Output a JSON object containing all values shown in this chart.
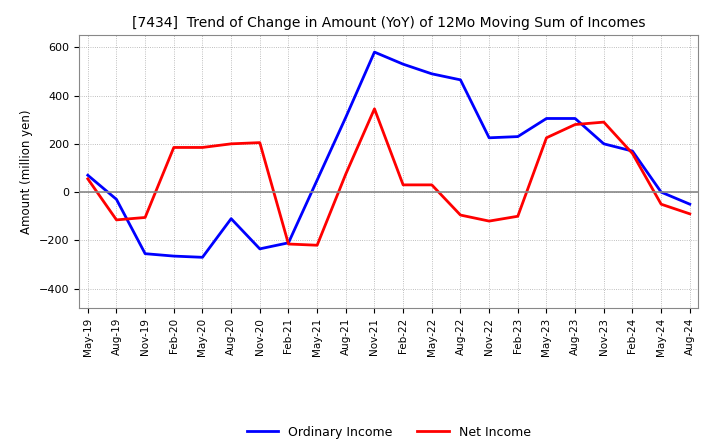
{
  "title": "[7434]  Trend of Change in Amount (YoY) of 12Mo Moving Sum of Incomes",
  "ylabel": "Amount (million yen)",
  "ylim": [
    -480,
    650
  ],
  "yticks": [
    -400,
    -200,
    0,
    200,
    400,
    600
  ],
  "x_labels": [
    "May-19",
    "Aug-19",
    "Nov-19",
    "Feb-20",
    "May-20",
    "Aug-20",
    "Nov-20",
    "Feb-21",
    "May-21",
    "Aug-21",
    "Nov-21",
    "Feb-22",
    "May-22",
    "Aug-22",
    "Nov-22",
    "Feb-23",
    "May-23",
    "Aug-23",
    "Nov-23",
    "Feb-24",
    "May-24",
    "Aug-24"
  ],
  "ordinary_income": [
    70,
    -30,
    -255,
    -265,
    -270,
    -110,
    -235,
    -210,
    50,
    310,
    580,
    530,
    490,
    465,
    225,
    230,
    305,
    305,
    200,
    170,
    0,
    -50
  ],
  "net_income": [
    55,
    -115,
    -105,
    185,
    185,
    200,
    205,
    -215,
    -220,
    75,
    345,
    30,
    30,
    -95,
    -120,
    -100,
    225,
    280,
    290,
    160,
    -50,
    -90
  ],
  "ordinary_color": "#0000ff",
  "net_color": "#ff0000",
  "grid_color": "#aaaaaa",
  "zero_line_color": "#888888",
  "background_color": "#ffffff",
  "spine_color": "#888888"
}
